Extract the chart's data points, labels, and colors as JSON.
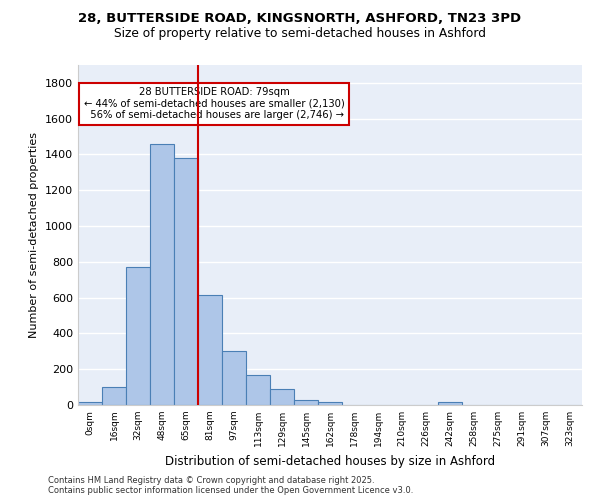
{
  "title_line1": "28, BUTTERSIDE ROAD, KINGSNORTH, ASHFORD, TN23 3PD",
  "title_line2": "Size of property relative to semi-detached houses in Ashford",
  "xlabel": "Distribution of semi-detached houses by size in Ashford",
  "ylabel": "Number of semi-detached properties",
  "bin_labels": [
    "0sqm",
    "16sqm",
    "32sqm",
    "48sqm",
    "65sqm",
    "81sqm",
    "97sqm",
    "113sqm",
    "129sqm",
    "145sqm",
    "162sqm",
    "178sqm",
    "194sqm",
    "210sqm",
    "226sqm",
    "242sqm",
    "258sqm",
    "275sqm",
    "291sqm",
    "307sqm",
    "323sqm"
  ],
  "bar_values": [
    15,
    100,
    770,
    1460,
    1380,
    615,
    300,
    170,
    90,
    30,
    18,
    0,
    0,
    0,
    0,
    15,
    0,
    0,
    0,
    0,
    0
  ],
  "bar_color": "#aec6e8",
  "bar_edge_color": "#4a7fb5",
  "vline_x": 4.5,
  "vline_color": "#cc0000",
  "annotation_text": "28 BUTTERSIDE ROAD: 79sqm\n← 44% of semi-detached houses are smaller (2,130)\n  56% of semi-detached houses are larger (2,746) →",
  "annotation_box_color": "#ffffff",
  "annotation_box_edge": "#cc0000",
  "background_color": "#e8eef8",
  "grid_color": "#ffffff",
  "ylim": [
    0,
    1900
  ],
  "yticks": [
    0,
    200,
    400,
    600,
    800,
    1000,
    1200,
    1400,
    1600,
    1800
  ],
  "footer_line1": "Contains HM Land Registry data © Crown copyright and database right 2025.",
  "footer_line2": "Contains public sector information licensed under the Open Government Licence v3.0."
}
